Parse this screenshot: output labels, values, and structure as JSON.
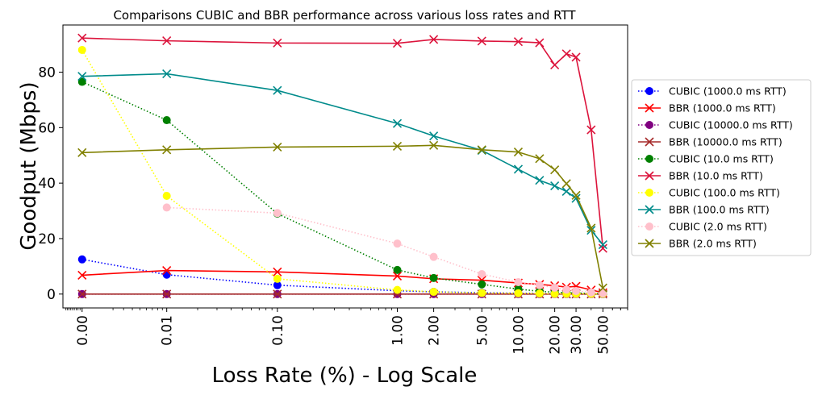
{
  "chart_data": {
    "type": "line",
    "title": "Comparisons CUBIC and BBR performance across various loss rates and RTT",
    "xlabel": "Loss Rate (%) - Log Scale",
    "ylabel": "Goodput (Mbps)",
    "x_scale": "symlog",
    "xlim": [
      -0.0011,
      80
    ],
    "ylim": [
      -5,
      97
    ],
    "grid": false,
    "legend_position": "right",
    "x_ticks": [
      0,
      0.01,
      0.1,
      1,
      2,
      5,
      10,
      20,
      30,
      50
    ],
    "x_tick_labels": [
      "0.00",
      "0.01",
      "0.10",
      "1.00",
      "2.00",
      "5.00",
      "10.00",
      "20.00",
      "30.00",
      "50.00"
    ],
    "y_ticks": [
      0,
      20,
      40,
      60,
      80
    ],
    "y_tick_labels": [
      "0",
      "20",
      "40",
      "60",
      "80"
    ],
    "series": [
      {
        "name": "CUBIC (1000.0 ms RTT)",
        "color": "#0000ff",
        "style": "dotted",
        "marker": "circle",
        "x": [
          0,
          0.01,
          0.1,
          1,
          2,
          5,
          10,
          15,
          20,
          25,
          30,
          40,
          50
        ],
        "y": [
          12.5,
          7,
          3.2,
          1.2,
          0.8,
          0.5,
          0.3,
          0.2,
          0.1,
          0.1,
          0.1,
          0.1,
          0.1
        ]
      },
      {
        "name": "BBR (1000.0 ms RTT)",
        "color": "#ff0000",
        "style": "solid",
        "marker": "x",
        "x": [
          0,
          0.01,
          0.1,
          1,
          2,
          5,
          10,
          15,
          20,
          25,
          30,
          40,
          50
        ],
        "y": [
          6.8,
          8.5,
          8,
          6.5,
          5.5,
          5,
          4,
          3.5,
          3,
          2.5,
          2.8,
          1.5,
          0.5
        ]
      },
      {
        "name": "CUBIC (10000.0 ms RTT)",
        "color": "#800080",
        "style": "dotted",
        "marker": "circle",
        "x": [
          0,
          0.01,
          0.1,
          1,
          2,
          5,
          10,
          15,
          20,
          25,
          30,
          40,
          50
        ],
        "y": [
          0,
          0,
          0,
          0,
          0,
          0,
          0,
          0,
          0,
          0,
          0,
          0,
          0
        ]
      },
      {
        "name": "BBR (10000.0 ms RTT)",
        "color": "#a52a2a",
        "style": "solid",
        "marker": "x",
        "x": [
          0,
          0.01,
          0.1,
          1,
          2,
          5,
          10,
          15,
          20,
          25,
          30,
          40,
          50
        ],
        "y": [
          0,
          0,
          0,
          0,
          0,
          0,
          0,
          0,
          0,
          0,
          0,
          0,
          0
        ]
      },
      {
        "name": "CUBIC (10.0 ms RTT)",
        "color": "#008000",
        "style": "dotted",
        "marker": "circle",
        "x": [
          0,
          0.01,
          0.1,
          1,
          2,
          5,
          10,
          15,
          20,
          25,
          30,
          40,
          50
        ],
        "y": [
          76.5,
          62.7,
          29,
          8.7,
          5.8,
          3.5,
          1.8,
          1,
          0.7,
          0.5,
          0.4,
          0.2,
          0.1
        ]
      },
      {
        "name": "BBR (10.0 ms RTT)",
        "color": "#dc143c",
        "style": "solid",
        "marker": "x",
        "x": [
          0,
          0.01,
          0.1,
          1,
          2,
          5,
          10,
          15,
          20,
          25,
          30,
          40,
          50
        ],
        "y": [
          92.3,
          91.3,
          90.5,
          90.4,
          91.8,
          91.2,
          91,
          90.6,
          82.6,
          86.6,
          85.4,
          59.2,
          16.5
        ]
      },
      {
        "name": "CUBIC (100.0 ms RTT)",
        "color": "#ffff00",
        "style": "dotted",
        "marker": "circle",
        "x": [
          0,
          0.01,
          0.1,
          1,
          2,
          5,
          10,
          15,
          20,
          25,
          30,
          40,
          50
        ],
        "y": [
          88,
          35.4,
          5.5,
          1.5,
          0.8,
          0.4,
          0.3,
          0.2,
          0.1,
          0.1,
          0.1,
          0.1,
          0.1
        ]
      },
      {
        "name": "BBR (100.0 ms RTT)",
        "color": "#008b8b",
        "style": "solid",
        "marker": "x",
        "x": [
          0,
          0.01,
          0.1,
          1,
          2,
          5,
          10,
          15,
          20,
          25,
          30,
          40,
          50
        ],
        "y": [
          78.5,
          79.4,
          73.4,
          61.5,
          57,
          51.8,
          45,
          41,
          39,
          37,
          34.5,
          23,
          17.8
        ]
      },
      {
        "name": "CUBIC (2.0 ms RTT)",
        "color": "#ffc0cb",
        "style": "dotted",
        "marker": "circle",
        "x": [
          0,
          0.01,
          0.1,
          1,
          2,
          5,
          10,
          15,
          20,
          25,
          30,
          40,
          50
        ],
        "y": [
          null,
          31.2,
          29.2,
          18.2,
          13.4,
          7.2,
          4.3,
          3.2,
          2.3,
          1.6,
          1.1,
          0.6,
          0.3
        ]
      },
      {
        "name": "BBR (2.0 ms RTT)",
        "color": "#808000",
        "style": "solid",
        "marker": "x",
        "x": [
          0,
          0.01,
          0.1,
          1,
          2,
          5,
          10,
          15,
          20,
          25,
          30,
          40,
          50
        ],
        "y": [
          51,
          52,
          53,
          53.3,
          53.6,
          52,
          51.2,
          48.8,
          44.8,
          39.8,
          35.6,
          23.8,
          2.2
        ]
      }
    ]
  }
}
